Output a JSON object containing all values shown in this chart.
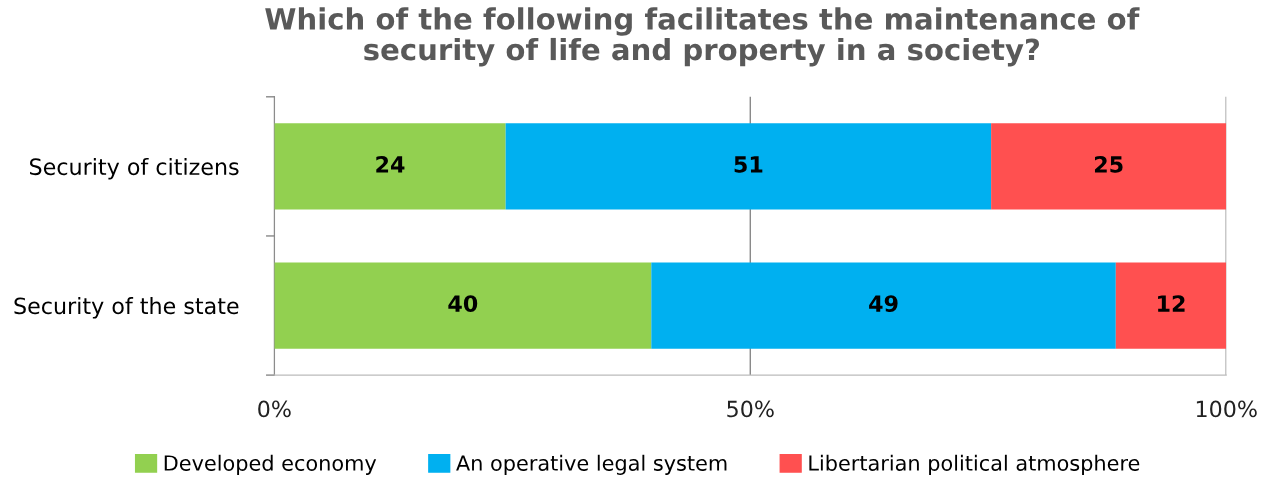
{
  "chart_data": {
    "type": "bar",
    "orientation": "horizontal",
    "stacked": true,
    "title": "Which of the following facilitates the maintenance of\nsecurity of life and property in a society?",
    "categories": [
      "Security of citizens",
      "Security of the state"
    ],
    "series": [
      {
        "name": "Developed economy",
        "color": "#92d050",
        "values": [
          24.3,
          39.6
        ],
        "value_labels": [
          "24",
          "40"
        ]
      },
      {
        "name": "An operative legal system",
        "color": "#00b0f0",
        "values": [
          51.0,
          48.8
        ],
        "value_labels": [
          "51",
          "49"
        ]
      },
      {
        "name": "Libertarian political atmosphere",
        "color": "#ff5050",
        "values": [
          24.7,
          11.6
        ],
        "value_labels": [
          "25",
          "12"
        ]
      }
    ],
    "xlim": [
      0,
      100
    ],
    "xticks": [
      {
        "value": 0,
        "label": "0%"
      },
      {
        "value": 50,
        "label": "50%"
      },
      {
        "value": 100,
        "label": "100%"
      }
    ],
    "grid": "x",
    "legend": "bottom"
  }
}
